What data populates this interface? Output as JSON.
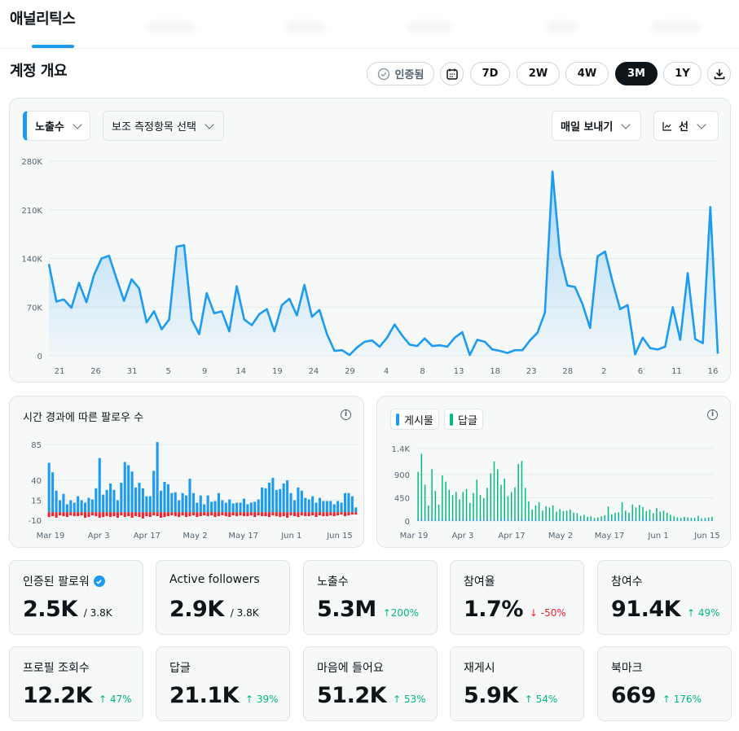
{
  "tabs": {
    "active": "애널리틱스"
  },
  "overview": {
    "title": "계정 개요",
    "verified_label": "인증됨",
    "ranges": [
      "7D",
      "2W",
      "4W",
      "3M",
      "1Y"
    ],
    "selected_range": "3M",
    "icons": {
      "verified": "check-circle-icon",
      "calendar": "calendar-icon",
      "download": "download-icon"
    }
  },
  "main_chart": {
    "metric_label": "노출수",
    "secondary_label": "보조 측정항목 선택",
    "export_label": "매일 보내기",
    "type_label": "선",
    "accent_color": "#1d9bf0",
    "chart_data": {
      "type": "area",
      "y_ticks": [
        "280K",
        "210K",
        "140K",
        "70K",
        "0"
      ],
      "ylim": [
        0,
        280000
      ],
      "x_ticks": [
        "21",
        "26",
        "31",
        "5",
        "9",
        "14",
        "19",
        "24",
        "29",
        "4",
        "8",
        "13",
        "18",
        "23",
        "28",
        "2",
        "6",
        "11",
        "16"
      ],
      "values": [
        132000,
        78000,
        81000,
        69000,
        105000,
        77000,
        116000,
        140000,
        144000,
        111000,
        79000,
        110000,
        97000,
        48000,
        64000,
        38000,
        52000,
        157000,
        159000,
        52000,
        31000,
        90000,
        61000,
        64000,
        35000,
        100000,
        52000,
        44000,
        60000,
        67000,
        35000,
        73000,
        82000,
        58000,
        102000,
        56000,
        66000,
        31000,
        7000,
        8000,
        1000,
        12000,
        20000,
        22000,
        13000,
        26000,
        45000,
        29000,
        16000,
        14000,
        25000,
        14000,
        15000,
        13000,
        26000,
        34000,
        1000,
        23000,
        20000,
        9000,
        7000,
        4000,
        8000,
        8000,
        22000,
        33000,
        62000,
        265000,
        145000,
        101000,
        99000,
        74000,
        40000,
        143000,
        150000,
        106000,
        67000,
        73000,
        2000,
        26000,
        11000,
        9000,
        13000,
        70000,
        23000,
        119000,
        24000,
        18000,
        214000,
        3000
      ]
    }
  },
  "followers_chart": {
    "title": "시간 경과에 따른 팔로우 수",
    "chart_data": {
      "type": "bar",
      "y_ticks": [
        "85",
        "40",
        "15",
        "-10"
      ],
      "ylim": [
        -10,
        85
      ],
      "x_ticks": [
        "Mar 19",
        "Apr 3",
        "Apr 17",
        "May 2",
        "May 17",
        "Jun 1",
        "Jun 15"
      ],
      "series": [
        {
          "name": "",
          "color": "#1d9bf0",
          "values": [
            62,
            50,
            27,
            15,
            23,
            10,
            15,
            12,
            20,
            15,
            12,
            18,
            16,
            30,
            68,
            22,
            28,
            36,
            28,
            15,
            37,
            63,
            59,
            51,
            31,
            37,
            30,
            20,
            20,
            52,
            88,
            27,
            38,
            35,
            24,
            25,
            15,
            24,
            21,
            42,
            24,
            12,
            21,
            10,
            21,
            13,
            14,
            24,
            15,
            12,
            16,
            11,
            12,
            12,
            17,
            10,
            12,
            13,
            16,
            31,
            30,
            37,
            43,
            28,
            29,
            36,
            40,
            24,
            15,
            31,
            27,
            18,
            16,
            20,
            12,
            18,
            14,
            14,
            14,
            10,
            14,
            12,
            24,
            24,
            20,
            6
          ]
        },
        {
          "name": "",
          "color": "#f4212e",
          "values": [
            -6,
            -5,
            -7,
            -4,
            -5,
            -6,
            -4,
            -5,
            -5,
            -4,
            -7,
            -6,
            -4,
            -5,
            -7,
            -6,
            -5,
            -6,
            -5,
            -7,
            -4,
            -6,
            -5,
            -7,
            -5,
            -6,
            -8,
            -5,
            -6,
            -4,
            -5,
            -7,
            -6,
            -5,
            -4,
            -5,
            -6,
            -4,
            -6,
            -5,
            -4,
            -6,
            -5,
            -4,
            -5,
            -4,
            -6,
            -5,
            -4,
            -5,
            -6,
            -4,
            -5,
            -4,
            -5,
            -5,
            -4,
            -6,
            -4,
            -5,
            -5,
            -6,
            -4,
            -5,
            -6,
            -5,
            -7,
            -4,
            -5,
            -6,
            -4,
            -5,
            -5,
            -4,
            -6,
            -4,
            -5,
            -5,
            -4,
            -5,
            -4,
            -3,
            -5,
            -4,
            -3,
            -3
          ]
        }
      ]
    }
  },
  "posts_chart": {
    "legend": [
      {
        "label": "게시물",
        "color": "#1d9bf0"
      },
      {
        "label": "답글",
        "color": "#00ba7c"
      }
    ],
    "chart_data": {
      "type": "bar",
      "y_ticks": [
        "1.4K",
        "900",
        "450",
        "0"
      ],
      "ylim": [
        0,
        1400
      ],
      "x_ticks": [
        "Mar 19",
        "Apr 3",
        "Apr 17",
        "May 2",
        "May 17",
        "Jun 1",
        "Jun 15"
      ],
      "series": [
        {
          "name": "답글",
          "color": "#00ba7c",
          "values": [
            950,
            1300,
            700,
            300,
            1000,
            580,
            320,
            880,
            760,
            600,
            500,
            560,
            420,
            560,
            620,
            350,
            540,
            800,
            500,
            440,
            640,
            920,
            1150,
            1000,
            700,
            820,
            480,
            560,
            650,
            1100,
            1160,
            640,
            380,
            220,
            300,
            360,
            200,
            280,
            260,
            300,
            180,
            230,
            190,
            200,
            220,
            160,
            150,
            100,
            120,
            80,
            90,
            60,
            70,
            90,
            110,
            280,
            130,
            160,
            170,
            360,
            200,
            160,
            320,
            260,
            310,
            270,
            190,
            220,
            150,
            250,
            180,
            200,
            160,
            120,
            90,
            70,
            60,
            80,
            70,
            60,
            60,
            100,
            50,
            60,
            70,
            80
          ]
        },
        {
          "name": "게시물",
          "color": "#1d9bf0",
          "values": [
            50,
            60,
            40,
            30,
            50,
            40,
            30,
            50,
            40,
            30,
            40,
            30,
            40,
            50,
            40,
            30,
            40,
            50,
            30,
            40,
            30,
            50,
            40,
            30,
            40,
            50,
            30,
            40,
            30,
            40,
            50,
            30,
            40,
            30,
            40,
            30,
            30,
            40,
            30,
            30,
            40,
            30,
            40,
            30,
            40,
            30,
            40,
            30,
            30,
            20,
            30,
            20,
            30,
            20,
            30,
            100,
            30,
            60,
            40,
            110,
            40,
            30,
            120,
            40,
            30,
            90,
            30,
            40,
            30,
            50,
            30,
            40,
            20,
            30,
            30,
            20,
            20,
            30,
            20,
            20,
            30,
            20,
            20,
            20,
            20,
            20
          ]
        }
      ]
    }
  },
  "stats": [
    {
      "label": "인증된 팔로워",
      "value": "2.5K",
      "of": "/ 3.8K",
      "verified": true
    },
    {
      "label": "Active followers",
      "value": "2.9K",
      "of": "/ 3.8K"
    },
    {
      "label": "노출수",
      "value": "5.3M",
      "change": "↑200%",
      "dir": "up"
    },
    {
      "label": "참여율",
      "value": "1.7%",
      "change": "↓ -50%",
      "dir": "down"
    },
    {
      "label": "참여수",
      "value": "91.4K",
      "change": "↑ 49%",
      "dir": "up"
    },
    {
      "label": "프로필 조회수",
      "value": "12.2K",
      "change": "↑ 47%",
      "dir": "up"
    },
    {
      "label": "답글",
      "value": "21.1K",
      "change": "↑ 39%",
      "dir": "up"
    },
    {
      "label": "마음에 들어요",
      "value": "51.2K",
      "change": "↑ 53%",
      "dir": "up"
    },
    {
      "label": "재게시",
      "value": "5.9K",
      "change": "↑ 54%",
      "dir": "up"
    },
    {
      "label": "북마크",
      "value": "669",
      "change": "↑ 176%",
      "dir": "up"
    }
  ]
}
